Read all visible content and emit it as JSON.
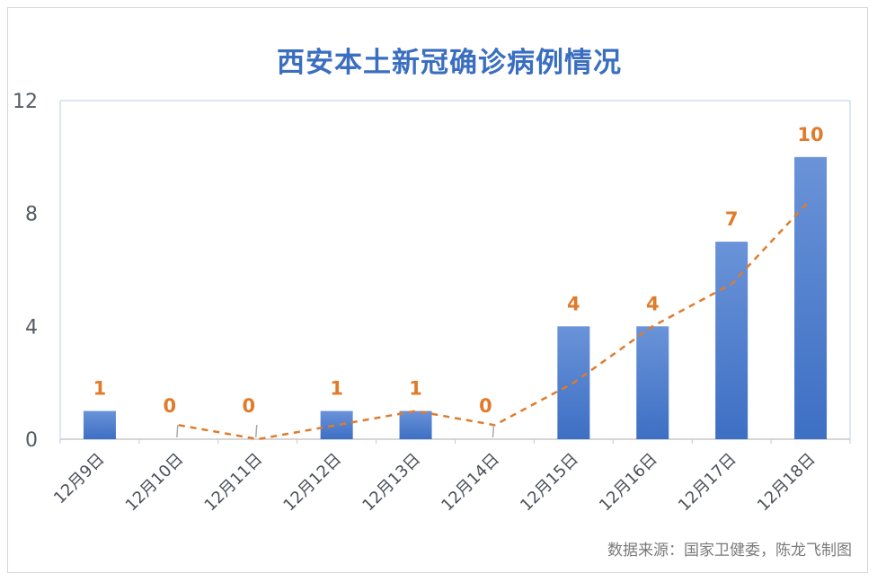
{
  "title": "西安本土新冠确诊病例情况",
  "source": "数据来源：国家卫健委，陈龙飞制图",
  "colors": {
    "bar": "#3d6fc4",
    "bar_top": "#6a93d8",
    "trend": "#e07b2a",
    "label": "#e07b2a",
    "axis": "#bcd0e4"
  },
  "chart_data": {
    "type": "bar",
    "title": "西安本土新冠确诊病例情况",
    "categories": [
      "12月9日",
      "12月10日",
      "12月11日",
      "12月12日",
      "12月13日",
      "12月14日",
      "12月15日",
      "12月16日",
      "12月17日",
      "12月18日"
    ],
    "values": [
      1,
      0,
      0,
      1,
      1,
      0,
      4,
      4,
      7,
      10
    ],
    "data_labels": [
      "1",
      "0",
      "0",
      "1",
      "1",
      "0",
      "4",
      "4",
      "7",
      "10"
    ],
    "yticks": [
      "0",
      "4",
      "8",
      "12"
    ],
    "ylim": [
      0,
      12
    ],
    "trendline": {
      "type": "moving-average",
      "style": "dashed"
    },
    "grid": false
  }
}
